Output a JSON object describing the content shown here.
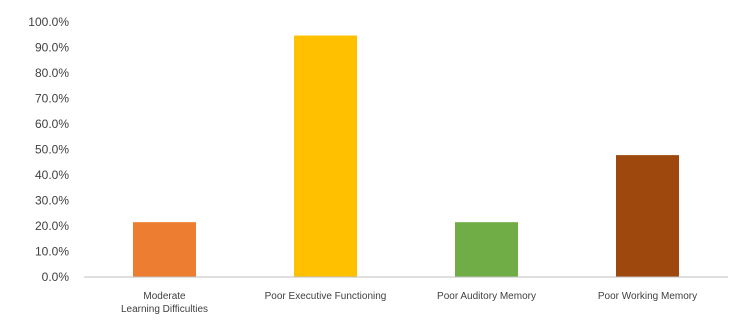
{
  "chart_data": {
    "type": "bar",
    "categories": [
      [
        "Moderate",
        "Learning Difficulties"
      ],
      [
        "Poor Executive Functioning"
      ],
      [
        "Poor Auditory Memory"
      ],
      [
        "Poor Working Memory"
      ]
    ],
    "values": [
      21.5,
      94.7,
      21.5,
      47.8
    ],
    "colors": [
      "#ED7D31",
      "#FFC000",
      "#70AD47",
      "#9E480E"
    ],
    "ylim": [
      0,
      100
    ],
    "yticks": [
      "0.0%",
      "10.0%",
      "20.0%",
      "30.0%",
      "40.0%",
      "50.0%",
      "60.0%",
      "70.0%",
      "80.0%",
      "90.0%",
      "100.0%"
    ],
    "grid": false,
    "legend": "none",
    "axis_color": "#BFBFBF"
  }
}
